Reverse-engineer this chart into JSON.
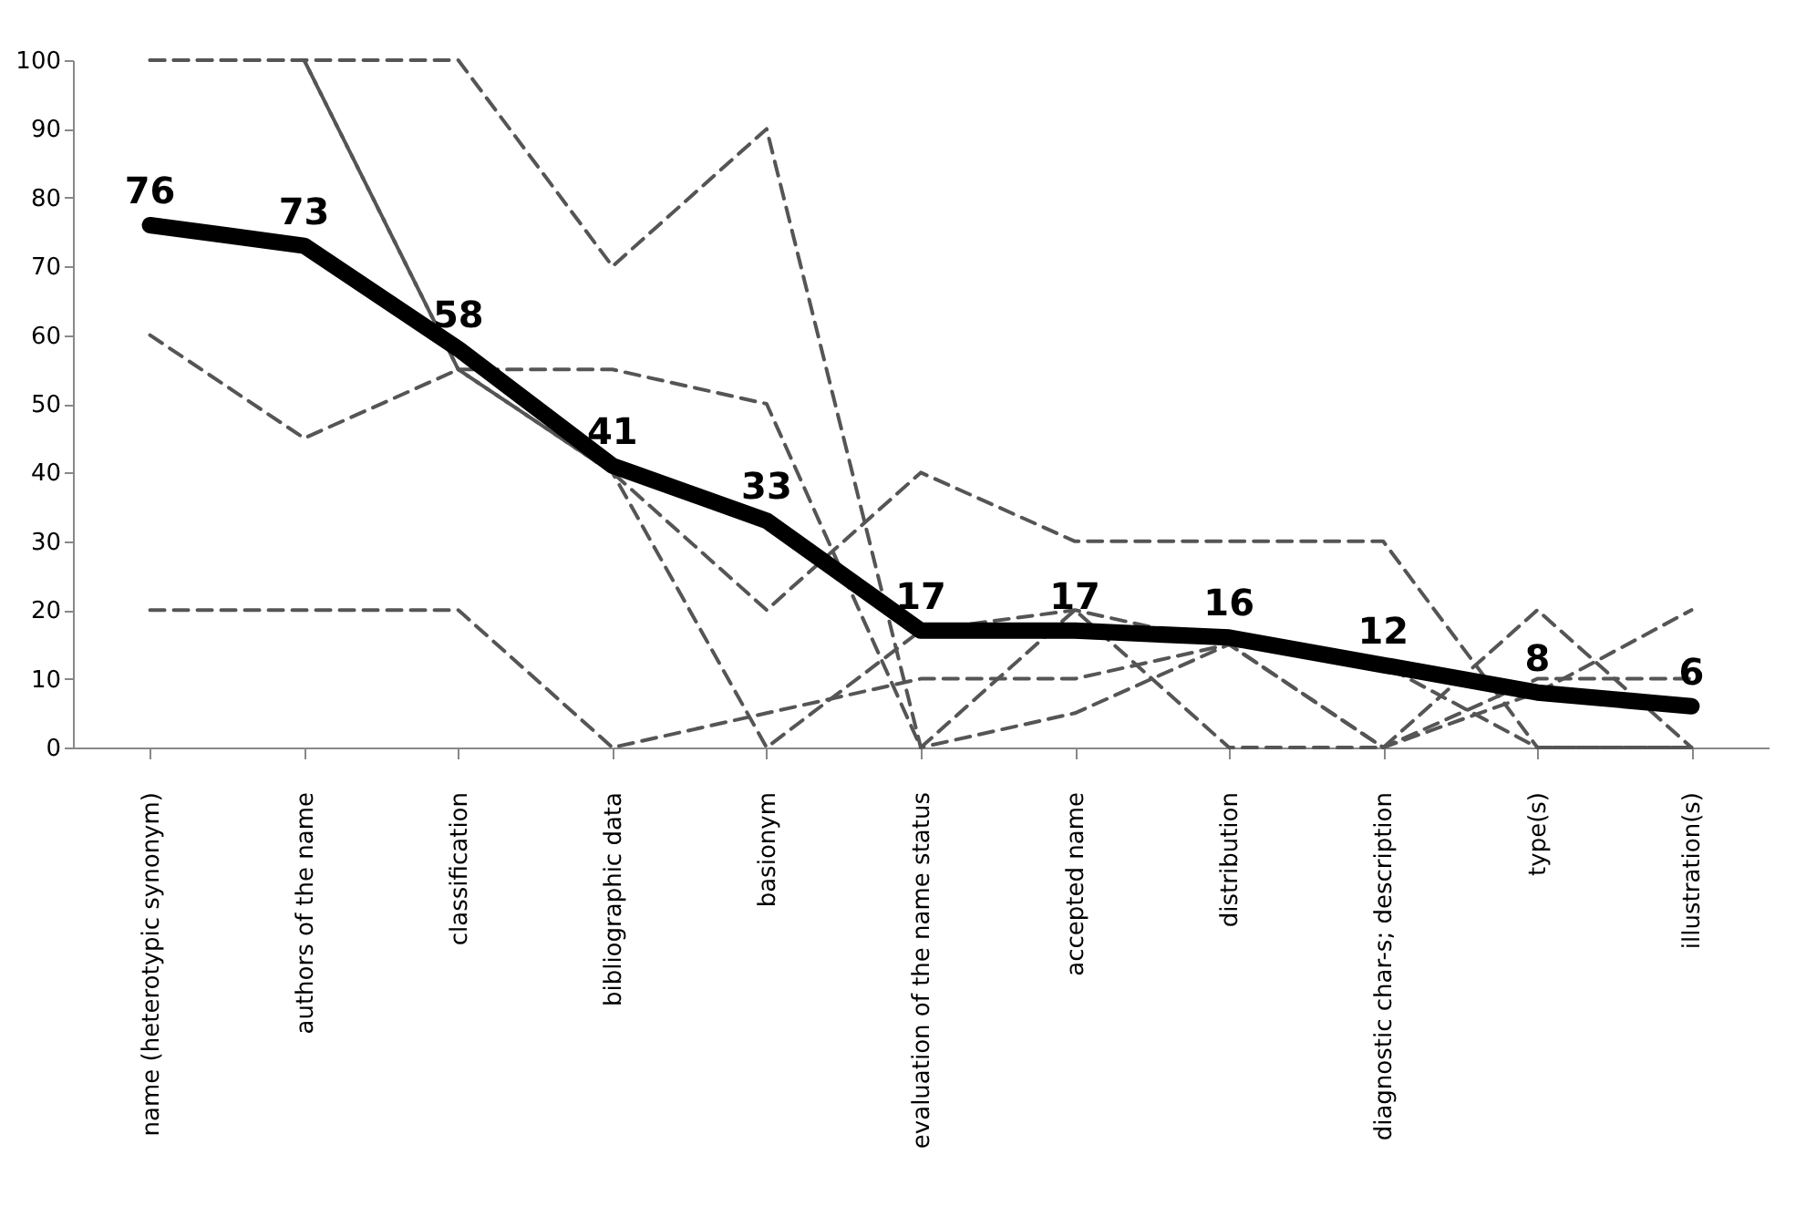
{
  "chart_data": {
    "type": "line",
    "categories": [
      "name (heterotypic synonym)",
      "authors of the name",
      "classification",
      "bibliographic data",
      "basionym",
      "evaluation of the name status",
      "accepted name",
      "distribution",
      "diagnostic  char-s; description",
      "type(s)",
      "illustration(s)"
    ],
    "series": [
      {
        "color": "#555555",
        "line_style": "dashed",
        "values": [
          100,
          100,
          100,
          70,
          90,
          0,
          5,
          15,
          0,
          10,
          10
        ]
      },
      {
        "color": "#555555",
        "line_style": "dashed",
        "values": [
          100,
          100,
          55,
          40,
          20,
          40,
          30,
          30,
          30,
          0,
          0
        ]
      },
      {
        "color": "#555555",
        "line_style": "dashed",
        "values": [
          60,
          45,
          55,
          55,
          50,
          0,
          20,
          0,
          0,
          20,
          0
        ]
      },
      {
        "color": "#555555",
        "line_style": "dashed",
        "values": [
          20,
          20,
          20,
          0,
          5,
          10,
          10,
          15,
          0,
          8,
          20
        ]
      },
      {
        "color": "#555555",
        "line_style": "dashed",
        "values": [
          null,
          100,
          55,
          40,
          0,
          17,
          20,
          15,
          12,
          0,
          0
        ]
      },
      {
        "color": "#000000",
        "line_style": "solid",
        "values": [
          76,
          73,
          58,
          41,
          33,
          17,
          17,
          16,
          12,
          8,
          6
        ],
        "value_labels": [
          "76",
          "73",
          "58",
          "41",
          "33",
          "17",
          "17",
          "16",
          "12",
          "8",
          "6"
        ]
      }
    ],
    "ylim": [
      0,
      100
    ],
    "yticks": [
      0,
      10,
      20,
      30,
      40,
      50,
      60,
      70,
      80,
      90,
      100
    ],
    "grid": false
  }
}
